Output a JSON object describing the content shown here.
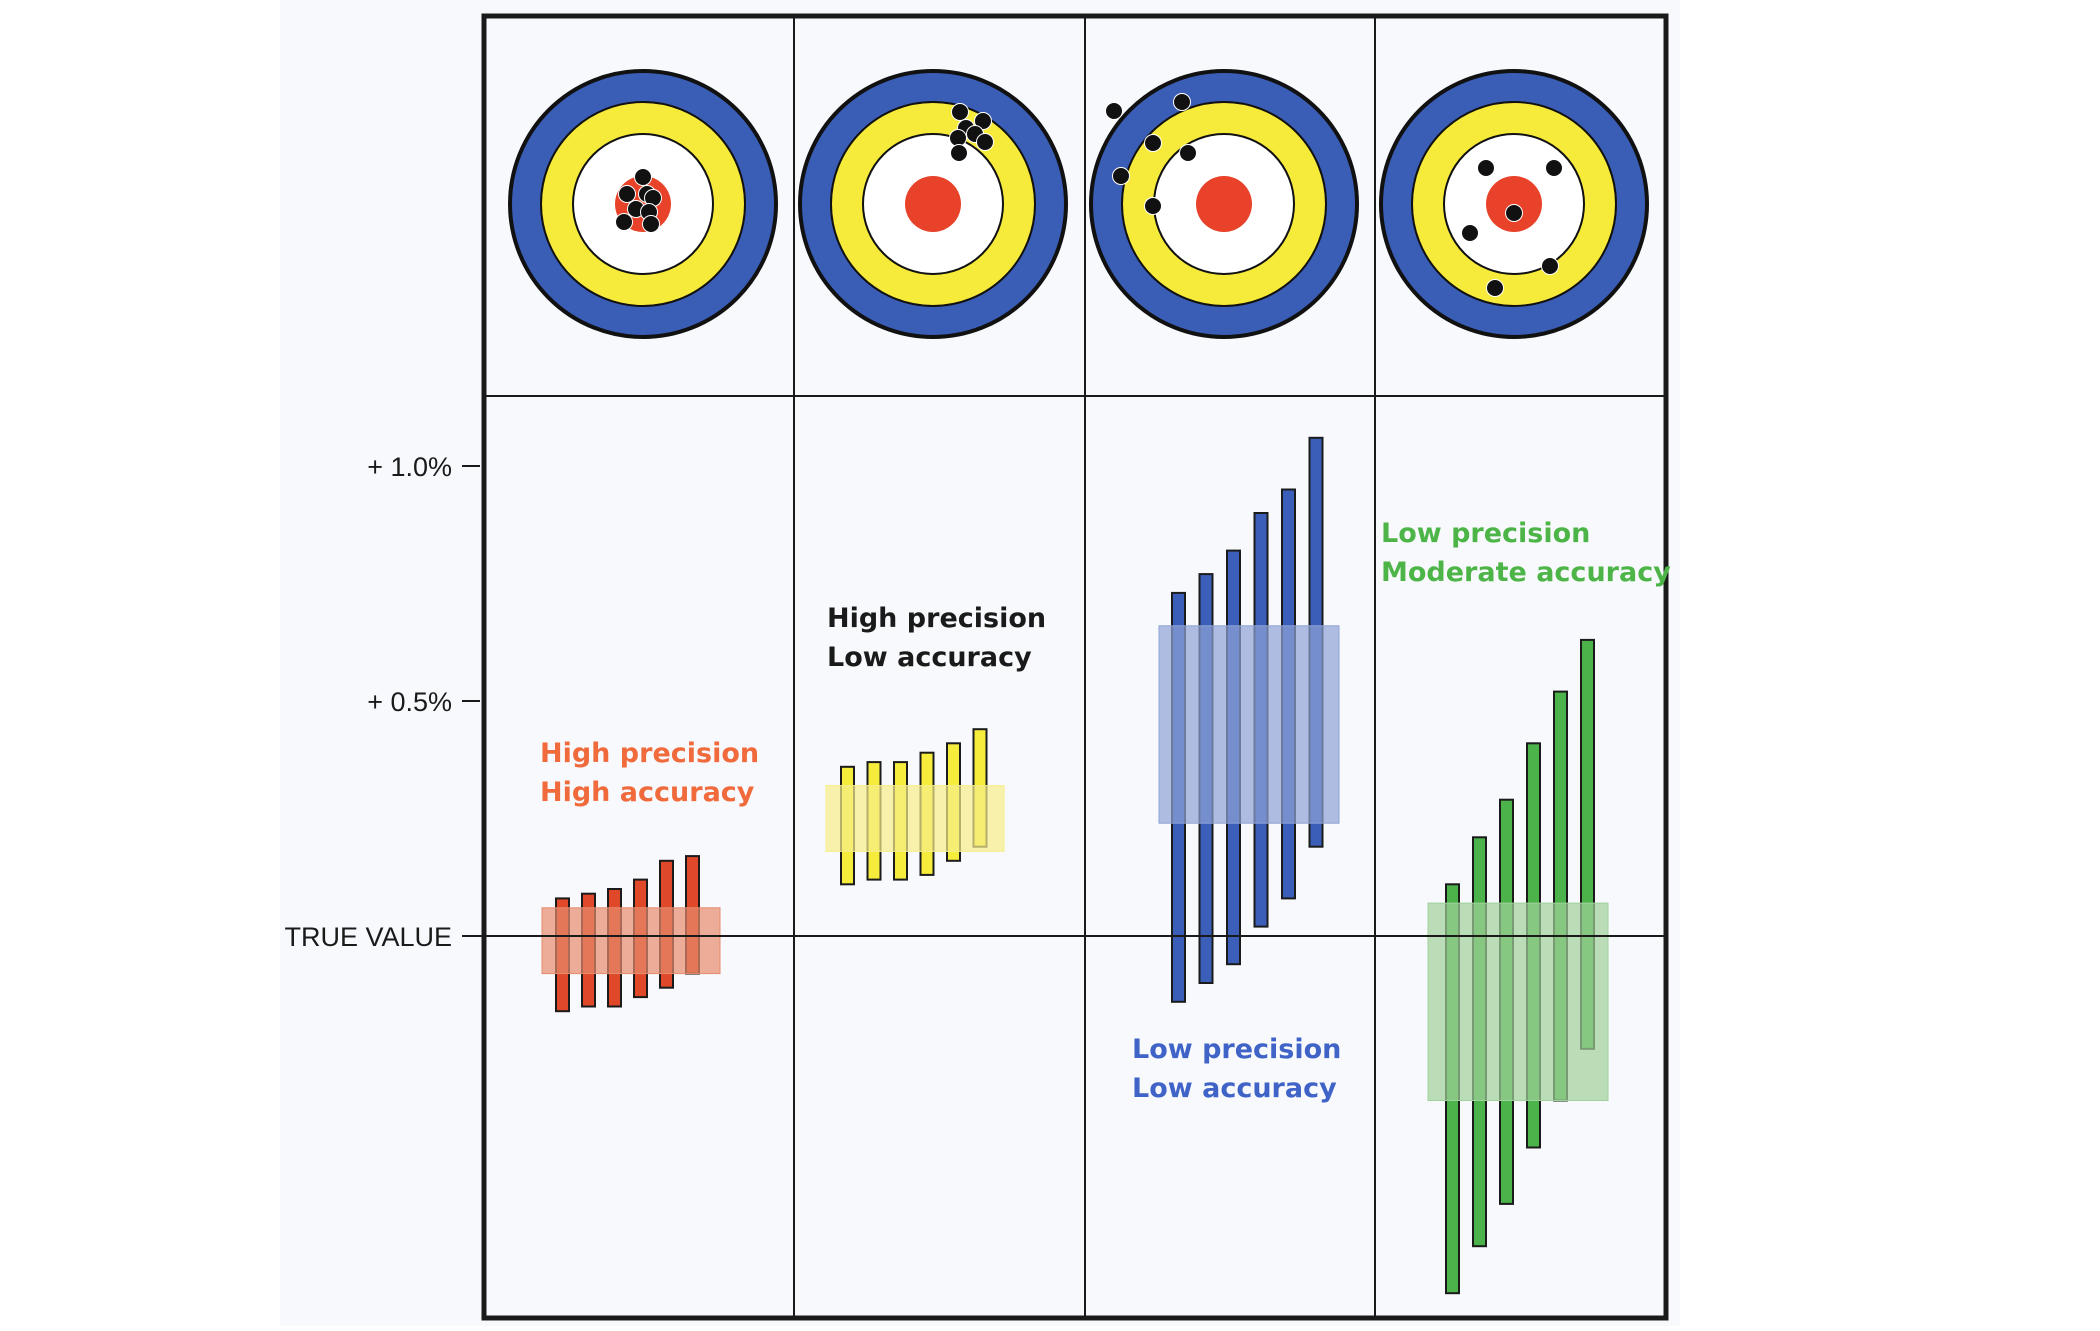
{
  "axis": {
    "labels": [
      "+ 1.0%",
      "+ 0.5%",
      "TRUE VALUE"
    ]
  },
  "colors": {
    "frame": "#1a1a1a",
    "panel_bg": "#f7f9fc",
    "target_blue": "#3a5db5",
    "target_yellow": "#f6ea3a",
    "target_white": "#ffffff",
    "target_red": "#e8432a",
    "shot": "#111111"
  },
  "panels": [
    {
      "id": "high-precision-high-accuracy",
      "caption": [
        "High precision",
        "High accuracy"
      ],
      "caption_color": "#f06a3c",
      "bar_color": "#e0482a",
      "band_color": "#e78c6e",
      "shots_description": "tight group in bullseye",
      "measurements": [
        {
          "low": -0.16,
          "high": 0.08
        },
        {
          "low": -0.15,
          "high": 0.09
        },
        {
          "low": -0.15,
          "high": 0.1
        },
        {
          "low": -0.13,
          "high": 0.12
        },
        {
          "low": -0.11,
          "high": 0.16
        },
        {
          "low": -0.08,
          "high": 0.17
        }
      ],
      "band": {
        "low": -0.08,
        "high": 0.06
      }
    },
    {
      "id": "high-precision-low-accuracy",
      "caption": [
        "High precision",
        "Low accuracy"
      ],
      "caption_color": "#1a1a1a",
      "bar_color": "#f5ec3c",
      "band_color": "#f7ee8a",
      "shots_description": "tight group off-centre in yellow ring",
      "measurements": [
        {
          "low": 0.11,
          "high": 0.36
        },
        {
          "low": 0.12,
          "high": 0.37
        },
        {
          "low": 0.12,
          "high": 0.37
        },
        {
          "low": 0.13,
          "high": 0.39
        },
        {
          "low": 0.16,
          "high": 0.41
        },
        {
          "low": 0.19,
          "high": 0.44
        }
      ],
      "band": {
        "low": 0.18,
        "high": 0.32
      }
    },
    {
      "id": "low-precision-low-accuracy",
      "caption": [
        "Low precision",
        "Low accuracy"
      ],
      "caption_color": "#3f63c7",
      "bar_color": "#3b5fb8",
      "band_color": "#8fa3d6",
      "shots_description": "scattered shots in outer rings",
      "measurements": [
        {
          "low": -0.14,
          "high": 0.73
        },
        {
          "low": -0.1,
          "high": 0.77
        },
        {
          "low": -0.06,
          "high": 0.82
        },
        {
          "low": 0.02,
          "high": 0.9
        },
        {
          "low": 0.08,
          "high": 0.95
        },
        {
          "low": 0.19,
          "high": 1.06
        }
      ],
      "band": {
        "low": 0.24,
        "high": 0.66
      }
    },
    {
      "id": "low-precision-moderate-accuracy",
      "caption": [
        "Low precision",
        "Moderate accuracy"
      ],
      "caption_color": "#4db548",
      "bar_color": "#4cb24a",
      "band_color": "#9fd19a",
      "shots_description": "scattered shots around bullseye",
      "measurements": [
        {
          "low": -0.76,
          "high": 0.11
        },
        {
          "low": -0.66,
          "high": 0.21
        },
        {
          "low": -0.57,
          "high": 0.29
        },
        {
          "low": -0.45,
          "high": 0.41
        },
        {
          "low": -0.35,
          "high": 0.52
        },
        {
          "low": -0.24,
          "high": 0.63
        }
      ],
      "band": {
        "low": -0.35,
        "high": 0.07
      }
    }
  ]
}
